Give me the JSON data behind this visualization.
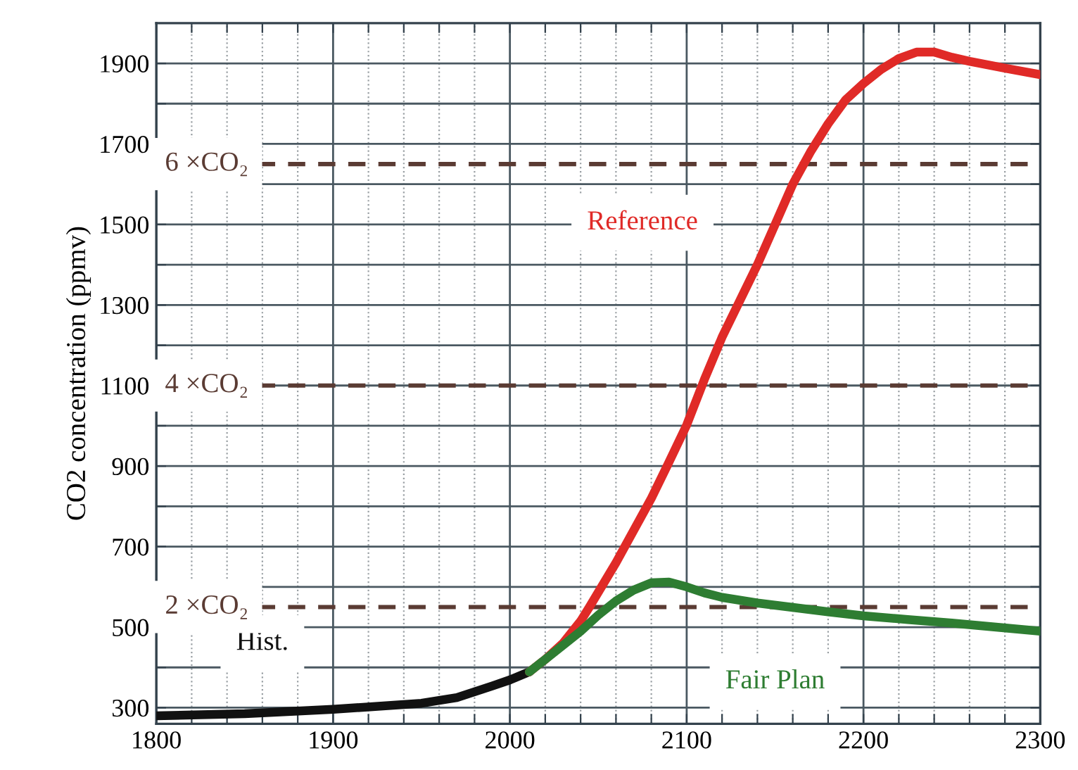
{
  "chart_data": {
    "type": "line",
    "ylabel": "CO2 concentration (ppmv)",
    "xlim": [
      1800,
      2300
    ],
    "ylim": [
      260,
      2000
    ],
    "xticks": [
      1800,
      {
        "value": 1820,
        "label": null
      },
      {
        "value": 1840,
        "label": null
      },
      {
        "value": 1860,
        "label": null
      },
      {
        "value": 1880,
        "label": null
      },
      1900,
      {
        "value": 1920,
        "label": null
      },
      {
        "value": 1940,
        "label": null
      },
      {
        "value": 1960,
        "label": null
      },
      {
        "value": 1980,
        "label": null
      },
      2000,
      {
        "value": 2020,
        "label": null
      },
      {
        "value": 2040,
        "label": null
      },
      {
        "value": 2060,
        "label": null
      },
      {
        "value": 2080,
        "label": null
      },
      2100,
      {
        "value": 2120,
        "label": null
      },
      {
        "value": 2140,
        "label": null
      },
      {
        "value": 2160,
        "label": null
      },
      {
        "value": 2180,
        "label": null
      },
      2200,
      {
        "value": 2220,
        "label": null
      },
      {
        "value": 2240,
        "label": null
      },
      {
        "value": 2260,
        "label": null
      },
      {
        "value": 2280,
        "label": null
      },
      2300
    ],
    "yticks": [
      300,
      {
        "value": 400,
        "label": null
      },
      500,
      {
        "value": 600,
        "label": null
      },
      700,
      {
        "value": 800,
        "label": null
      },
      900,
      {
        "value": 1000,
        "label": null
      },
      1100,
      {
        "value": 1200,
        "label": null
      },
      1300,
      {
        "value": 1400,
        "label": null
      },
      1500,
      {
        "value": 1600,
        "label": null
      },
      1700,
      {
        "value": 1800,
        "label": null
      },
      1900
    ],
    "grid": true,
    "legend": false,
    "marker": "none",
    "line_style": "solid",
    "series": [
      {
        "name": "Hist.",
        "color": "#111111",
        "x": [
          1800,
          1850,
          1900,
          1950,
          1970,
          1990,
          2000,
          2011
        ],
        "values": [
          280,
          285,
          296,
          311,
          325,
          354,
          369,
          389
        ]
      },
      {
        "name": "Reference",
        "color": "#e02a27",
        "x": [
          2011,
          2020,
          2030,
          2040,
          2045,
          2060,
          2070,
          2080,
          2090,
          2100,
          2110,
          2120,
          2130,
          2140,
          2150,
          2160,
          2170,
          2180,
          2190,
          2200,
          2210,
          2220,
          2230,
          2240,
          2250,
          2260,
          2280,
          2300
        ],
        "values": [
          389,
          420,
          460,
          515,
          550,
          660,
          740,
          820,
          910,
          1002,
          1115,
          1220,
          1310,
          1400,
          1500,
          1600,
          1680,
          1750,
          1810,
          1850,
          1885,
          1912,
          1928,
          1928,
          1915,
          1905,
          1888,
          1872
        ]
      },
      {
        "name": "Fair Plan",
        "color": "#2e7d32",
        "x": [
          2011,
          2020,
          2030,
          2040,
          2050,
          2060,
          2070,
          2080,
          2090,
          2100,
          2110,
          2120,
          2140,
          2160,
          2180,
          2200,
          2225,
          2250,
          2275,
          2300
        ],
        "values": [
          389,
          420,
          455,
          490,
          530,
          565,
          592,
          610,
          612,
          600,
          585,
          574,
          560,
          549,
          538,
          528,
          519,
          510,
          500,
          490
        ]
      }
    ],
    "ref_lines": [
      {
        "axis": "y",
        "value": 1650,
        "label": "6 ×CO₂",
        "color": "#5a3b33",
        "line_style": "dashed"
      },
      {
        "axis": "y",
        "value": 1100,
        "label": "4 ×CO₂",
        "color": "#5a3b33",
        "line_style": "dashed"
      },
      {
        "axis": "y",
        "value": 550,
        "label": "2 ×CO₂",
        "color": "#5a3b33",
        "line_style": "dashed"
      }
    ]
  }
}
